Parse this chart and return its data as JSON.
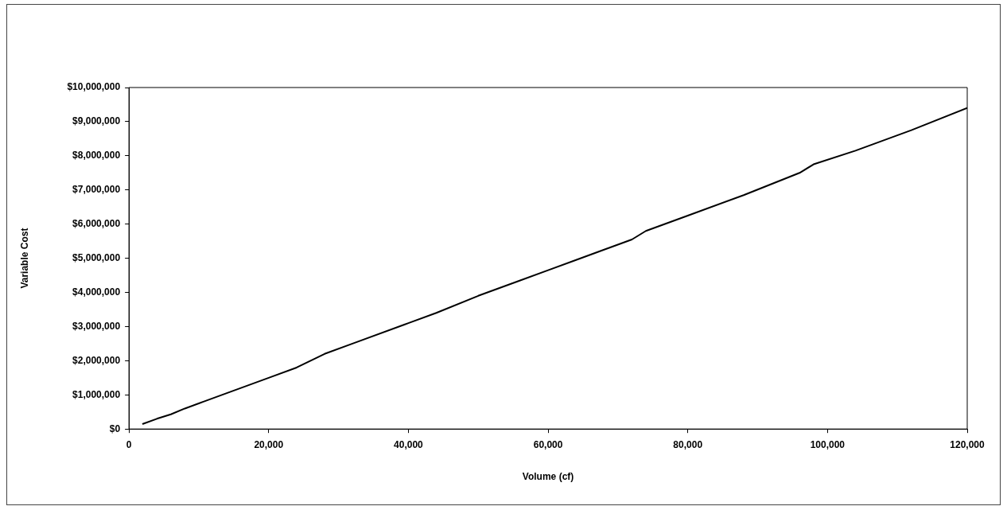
{
  "chart_data": {
    "type": "line",
    "xlabel": "Volume (cf)",
    "ylabel": "Variable Cost",
    "x": [
      2000,
      4000,
      6000,
      8000,
      10000,
      14000,
      20000,
      24000,
      28000,
      32000,
      40000,
      44000,
      50000,
      56000,
      60000,
      64000,
      72000,
      74000,
      80000,
      88000,
      96000,
      98000,
      104000,
      112000,
      120000
    ],
    "series": [
      {
        "color": "#000000",
        "values": [
          150000,
          300000,
          430000,
          600000,
          750000,
          1050000,
          1500000,
          1800000,
          2200000,
          2500000,
          3100000,
          3400000,
          3900000,
          4350000,
          4650000,
          4950000,
          5550000,
          5800000,
          6250000,
          6850000,
          7500000,
          7750000,
          8150000,
          8750000,
          9400000
        ]
      }
    ],
    "xlim": [
      0,
      120000
    ],
    "xticks": [
      {
        "value": 0,
        "label": "0"
      },
      {
        "value": 20000,
        "label": "20,000"
      },
      {
        "value": 40000,
        "label": "40,000"
      },
      {
        "value": 60000,
        "label": "60,000"
      },
      {
        "value": 80000,
        "label": "80,000"
      },
      {
        "value": 100000,
        "label": "100,000"
      },
      {
        "value": 120000,
        "label": "120,000"
      }
    ],
    "ylim": [
      0,
      10000000
    ],
    "yticks": [
      {
        "value": 0,
        "label": "$0"
      },
      {
        "value": 1000000,
        "label": "$1,000,000"
      },
      {
        "value": 2000000,
        "label": "$2,000,000"
      },
      {
        "value": 3000000,
        "label": "$3,000,000"
      },
      {
        "value": 4000000,
        "label": "$4,000,000"
      },
      {
        "value": 5000000,
        "label": "$5,000,000"
      },
      {
        "value": 6000000,
        "label": "$6,000,000"
      },
      {
        "value": 7000000,
        "label": "$7,000,000"
      },
      {
        "value": 8000000,
        "label": "$8,000,000"
      },
      {
        "value": 9000000,
        "label": "$9,000,000"
      },
      {
        "value": 10000000,
        "label": "$10,000,000"
      }
    ],
    "grid": false,
    "legend": false,
    "marker": "none",
    "line_style": "solid"
  }
}
